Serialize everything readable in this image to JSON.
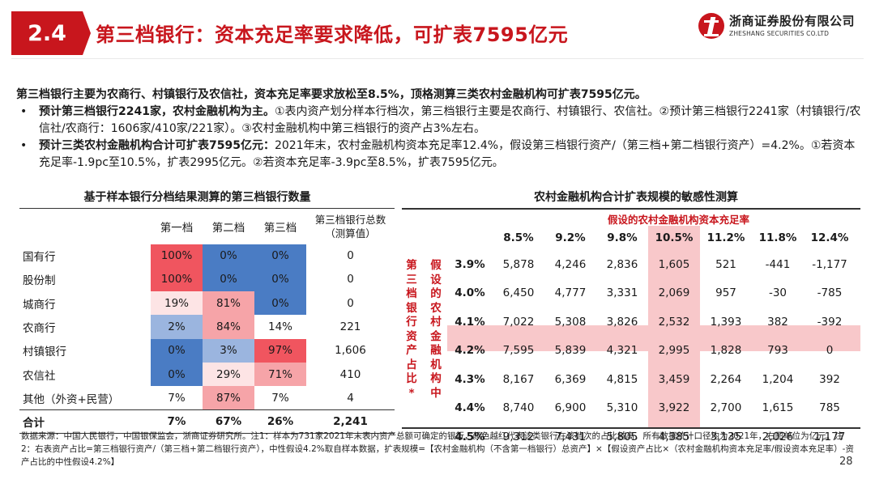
{
  "header": {
    "section_number": "2.4",
    "title": "第三档银行：资本充足率要求降低，可扩表7595亿元",
    "logo_cn": "浙商证券股份有限公司",
    "logo_en": "ZHESHANG SECURITIES CO.LTD"
  },
  "summary": {
    "lead": "第三档银行主要为农商行、村镇银行及农信社，资本充足率要求放松至8.5%，顶格测算三类农村金融机构可扩表7595亿元。",
    "bullets": [
      {
        "bold": "预计第三档银行2241家，农村金融机构为主。",
        "text": "①表内资产划分样本行档次，第三档银行主要是农商行、村镇银行、农信社。②预计第三档银行2241家（村镇银行/农信社/农商行：1606家/410家/221家）。③农村金融机构中第三档银行的资产占3%左右。"
      },
      {
        "bold": "预计三类农村金融机构合计可扩表7595亿元：",
        "text": "2021年末，农村金融机构资本充足率12.4%，假设第三档银行资产/（第三档+第二档银行资产）=4.2%。①若资本充足率-1.9pc至10.5%，扩表2995亿元。②若资本充足率-3.9pc至8.5%，扩表7595亿元。"
      }
    ]
  },
  "left_table": {
    "title": "基于样本银行分档结果测算的第三档银行数量",
    "headers": [
      "第一档",
      "第二档",
      "第三档",
      "第三档银行总数（测算值）"
    ],
    "rows": [
      {
        "name": "国有行",
        "c1": "100%",
        "c2": "0%",
        "c3": "0%",
        "c4": "0"
      },
      {
        "name": "股份制",
        "c1": "100%",
        "c2": "0%",
        "c3": "0%",
        "c4": "0"
      },
      {
        "name": "城商行",
        "c1": "19%",
        "c2": "81%",
        "c3": "0%",
        "c4": "0"
      },
      {
        "name": "农商行",
        "c1": "2%",
        "c2": "84%",
        "c3": "14%",
        "c4": "221"
      },
      {
        "name": "村镇银行",
        "c1": "0%",
        "c2": "3%",
        "c3": "97%",
        "c4": "1,606"
      },
      {
        "name": "农信社",
        "c1": "0%",
        "c2": "29%",
        "c3": "71%",
        "c4": "410"
      },
      {
        "name": "其他（外资+民营）",
        "c1": "7%",
        "c2": "87%",
        "c3": "7%",
        "c4": "4"
      }
    ],
    "total": {
      "name": "合计",
      "c1": "7%",
      "c2": "67%",
      "c3": "26%",
      "c4": "2,241"
    },
    "colors": {
      "red_strong": "#f0555f",
      "red_mid": "#f6a4a8",
      "red_light": "#fde4e5",
      "blue_strong": "#4a7cc4",
      "blue_mid": "#9bb5df"
    }
  },
  "right_table": {
    "title": "农村金融机构合计扩表规模的敏感性测算",
    "col_axis_label": "假设的农村金融机构资本充足率",
    "row_axis_label_1": "第三档银行资产占比*",
    "row_axis_label_2": "假设的农村金融机构中",
    "col_headers": [
      "8.5%",
      "9.2%",
      "9.8%",
      "10.5%",
      "11.2%",
      "11.8%",
      "12.4%"
    ],
    "rows": [
      {
        "label": "3.9%",
        "values": [
          "5,878",
          "4,246",
          "2,836",
          "1,605",
          "521",
          "-441",
          "-1,177"
        ]
      },
      {
        "label": "4.0%",
        "values": [
          "6,450",
          "4,777",
          "3,331",
          "2,069",
          "957",
          "-30",
          "-785"
        ]
      },
      {
        "label": "4.1%",
        "values": [
          "7,022",
          "5,308",
          "3,826",
          "2,532",
          "1,393",
          "382",
          "-392"
        ]
      },
      {
        "label": "4.2%",
        "values": [
          "7,595",
          "5,839",
          "4,321",
          "2,995",
          "1,828",
          "793",
          "0"
        ]
      },
      {
        "label": "4.3%",
        "values": [
          "8,167",
          "6,369",
          "4,815",
          "3,459",
          "2,264",
          "1,204",
          "392"
        ]
      },
      {
        "label": "4.4%",
        "values": [
          "8,740",
          "6,900",
          "5,310",
          "3,922",
          "2,700",
          "1,615",
          "785"
        ]
      },
      {
        "label": "4.5%",
        "values": [
          "9,312",
          "7,431",
          "5,805",
          "4,385",
          "3,135",
          "2,026",
          "1,177"
        ]
      }
    ],
    "highlight_color": "#f8c8ca"
  },
  "source": "数据来源：中国人民银行，中国银保监会，浙商证券研究所。注1：样本为731家2021年末表内资产总额可确定的银行，颜色越红代表该类银行在该档次的占比越高，所有数据统计口径均为2021年，右图单位为亿元。注2：右表资产占比=第三档银行资产/（第三档+第二档银行资产），中性假设4.2%取自样本数据，扩表规模=【农村金融机构（不含第一档银行）总资产】×【假设资产占比×（农村金融机构资本充足率/假设资本充足率）-资产占比的中性假设4.2%】",
  "page_number": "28"
}
